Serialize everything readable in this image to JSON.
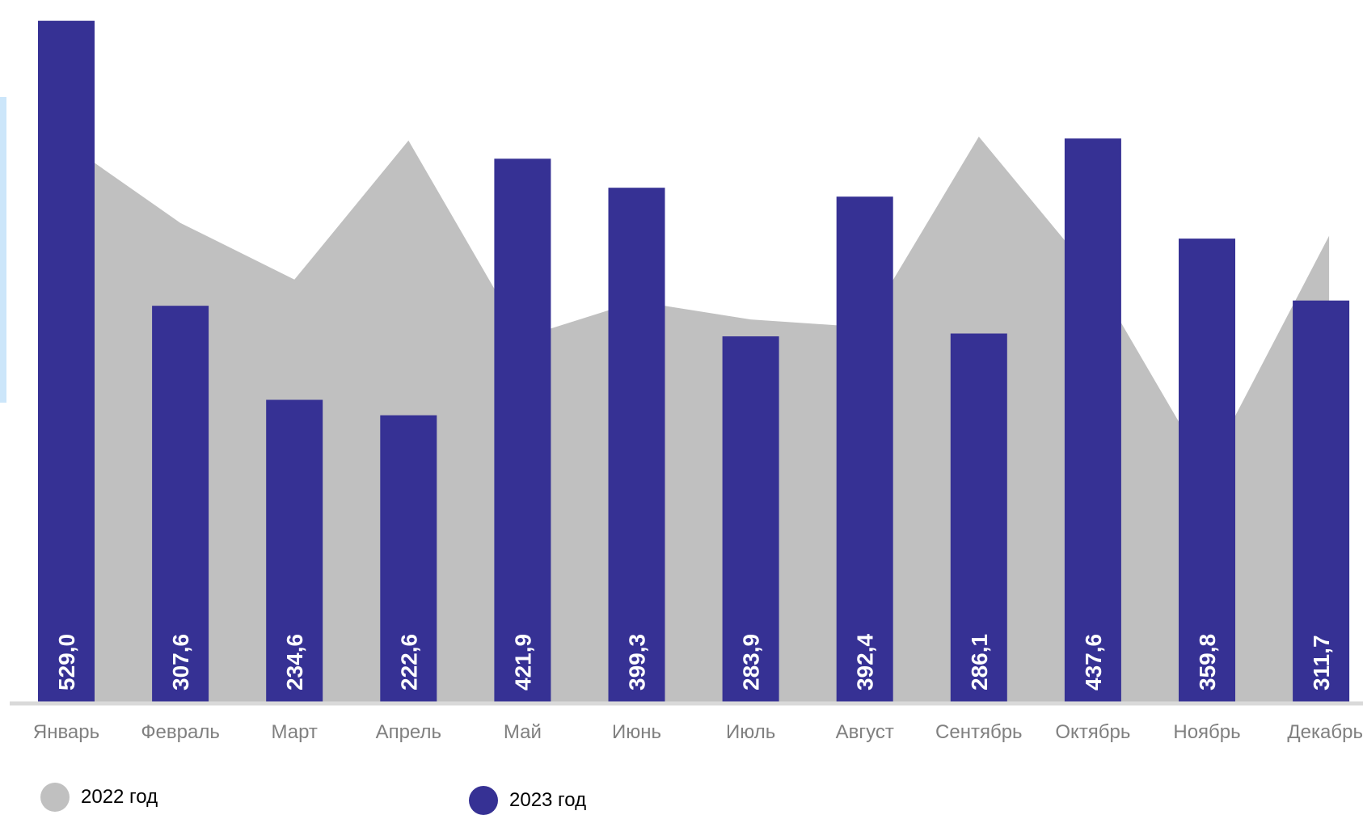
{
  "colors": {
    "series_2022": "#c0c0c0",
    "series_2023": "#363194",
    "baseline": "#d9d9d9",
    "side_accent": "#cce6fa",
    "tick_label": "#808080",
    "bar_label": "#ffffff"
  },
  "legend": {
    "items": [
      {
        "label": "2022 год",
        "color": "#c0c0c0"
      },
      {
        "label": "2023 год",
        "color": "#363194"
      }
    ]
  },
  "chart_data": {
    "type": "bar",
    "categories": [
      "Январь",
      "Февраль",
      "Март",
      "Апрель",
      "Май",
      "Июнь",
      "Июль",
      "Август",
      "Сентябрь",
      "Октябрь",
      "Ноябрь",
      "Декабрь"
    ],
    "series": [
      {
        "name": "2022 год",
        "type": "area",
        "values": [
          434,
          372,
          328,
          436,
          283,
          311,
          297,
          291,
          439,
          332,
          180,
          362
        ]
      },
      {
        "name": "2023 год",
        "type": "bar",
        "values": [
          529.0,
          307.6,
          234.6,
          222.6,
          421.9,
          399.3,
          283.9,
          392.4,
          286.1,
          437.6,
          359.8,
          311.7
        ],
        "data_labels": [
          "529,0",
          "307,6",
          "234,6",
          "222,6",
          "421,9",
          "399,3",
          "283,9",
          "392,4",
          "286,1",
          "437,6",
          "359,8",
          "311,7"
        ]
      }
    ],
    "title": "",
    "xlabel": "",
    "ylabel": "",
    "ylim": [
      0,
      537
    ],
    "grid": false,
    "legend_position": "bottom-left"
  }
}
